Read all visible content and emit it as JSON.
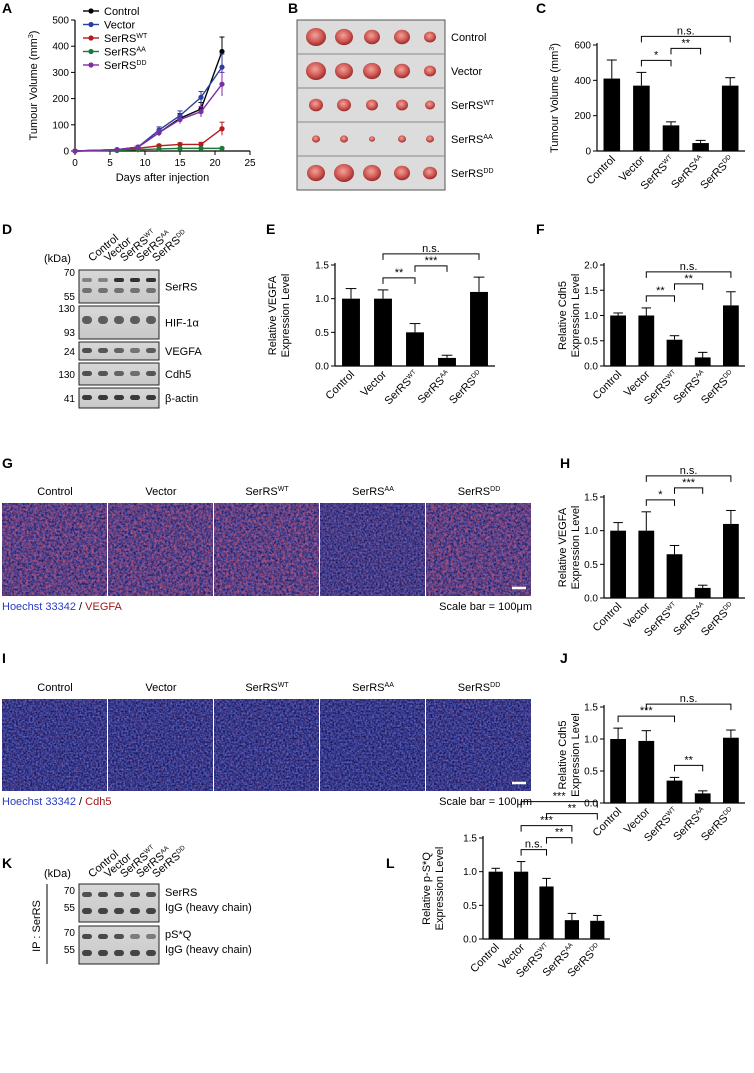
{
  "groups": [
    "Control",
    "Vector",
    "SerRS",
    "SerRS",
    "SerRS"
  ],
  "group_sups": [
    "",
    "",
    "WT",
    "AA",
    "DD"
  ],
  "colors": {
    "control": "#000000",
    "vector": "#2b3f9e",
    "wt": "#b71c1c",
    "aa": "#1b7a36",
    "dd": "#7b2fa6",
    "bar": "#000000",
    "hoechst": "#2a3bbf",
    "vegfa_stain": "#a01818",
    "cdh5_stain": "#a01818"
  },
  "panels": {
    "A": {
      "letter": "A"
    },
    "B": {
      "letter": "B"
    },
    "C": {
      "letter": "C"
    },
    "D": {
      "letter": "D"
    },
    "E": {
      "letter": "E"
    },
    "F": {
      "letter": "F"
    },
    "G": {
      "letter": "G"
    },
    "H": {
      "letter": "H"
    },
    "I": {
      "letter": "I"
    },
    "J": {
      "letter": "J"
    },
    "K": {
      "letter": "K"
    },
    "L": {
      "letter": "L"
    }
  },
  "blotD": {
    "kda": "(kDa)",
    "rows": [
      {
        "marker": "70",
        "marker2": "55",
        "label": "SerRS"
      },
      {
        "marker": "130",
        "marker2": "93",
        "label": "HIF-1α"
      },
      {
        "marker": "24",
        "marker2": "",
        "label": "VEGFA"
      },
      {
        "marker": "130",
        "marker2": "",
        "label": "Cdh5"
      },
      {
        "marker": "41",
        "marker2": "",
        "label": "β-actin"
      }
    ]
  },
  "blotK": {
    "kda": "(kDa)",
    "ip": "IP : SerRS",
    "rows": [
      {
        "m1": "70",
        "m2": "55",
        "l1": "SerRS",
        "l2": "IgG (heavy chain)"
      },
      {
        "m1": "70",
        "m2": "55",
        "l1": "pS*Q",
        "l2": "IgG (heavy chain)"
      }
    ]
  },
  "stainG": {
    "left": "Hoechst 33342",
    "sep": " / ",
    "right": "VEGFA",
    "scale": "Scale bar = 100μm"
  },
  "stainI": {
    "left": "Hoechst 33342",
    "sep": " / ",
    "right": "Cdh5",
    "scale": "Scale bar = 100μm"
  },
  "chart_data": [
    {
      "id": "A",
      "type": "line",
      "xlabel": "Days after injection",
      "ylabel": "Tumour Volume (mm",
      "ylabel_sup": "3",
      "ylabel_end": ")",
      "xlim": [
        0,
        25
      ],
      "ylim": [
        0,
        500
      ],
      "xticks": [
        0,
        5,
        10,
        15,
        20,
        25
      ],
      "yticks": [
        0,
        100,
        200,
        300,
        400,
        500
      ],
      "x": [
        0,
        6,
        9,
        12,
        15,
        18,
        21
      ],
      "series": [
        {
          "name": "Control",
          "sup": "",
          "color_key": "control",
          "values": [
            0,
            5,
            15,
            70,
            125,
            160,
            380
          ],
          "err": [
            0,
            3,
            5,
            12,
            18,
            25,
            55
          ]
        },
        {
          "name": "Vector",
          "sup": "",
          "color_key": "vector",
          "values": [
            0,
            5,
            15,
            80,
            135,
            205,
            320
          ],
          "err": [
            0,
            3,
            5,
            12,
            18,
            22,
            50
          ]
        },
        {
          "name": "SerRS",
          "sup": "WT",
          "color_key": "wt",
          "values": [
            0,
            3,
            10,
            20,
            25,
            25,
            85
          ],
          "err": [
            0,
            2,
            3,
            5,
            6,
            8,
            25
          ]
        },
        {
          "name": "SerRS",
          "sup": "AA",
          "color_key": "aa",
          "values": [
            0,
            2,
            5,
            8,
            10,
            10,
            10
          ],
          "err": [
            0,
            1,
            2,
            2,
            3,
            3,
            3
          ]
        },
        {
          "name": "SerRS",
          "sup": "DD",
          "color_key": "dd",
          "values": [
            0,
            5,
            15,
            70,
            120,
            150,
            255
          ],
          "err": [
            0,
            3,
            5,
            12,
            15,
            20,
            45
          ]
        }
      ]
    },
    {
      "id": "C",
      "type": "bar",
      "ylabel": "Tumour Volume (mm",
      "ylabel_sup": "3",
      "ylabel_end": ")",
      "ylim": [
        0,
        600
      ],
      "yticks": [
        0,
        200,
        400,
        600
      ],
      "values": [
        410,
        370,
        145,
        45,
        370
      ],
      "err": [
        105,
        75,
        20,
        15,
        45
      ],
      "sig": [
        {
          "from": 1,
          "to": 2,
          "label": "*"
        },
        {
          "from": 2,
          "to": 3,
          "label": "**"
        },
        {
          "from": 1,
          "to": 4,
          "label": "n.s."
        }
      ]
    },
    {
      "id": "E",
      "type": "bar",
      "ylabel": "Relative VEGFA",
      "ylabel2": "Expression Level",
      "ylim": [
        0,
        1.5
      ],
      "yticks": [
        0.0,
        0.5,
        1.0,
        1.5
      ],
      "values": [
        1.0,
        1.0,
        0.5,
        0.12,
        1.1
      ],
      "err": [
        0.15,
        0.13,
        0.13,
        0.04,
        0.22
      ],
      "sig": [
        {
          "from": 1,
          "to": 2,
          "label": "**"
        },
        {
          "from": 2,
          "to": 3,
          "label": "***"
        },
        {
          "from": 1,
          "to": 4,
          "label": "n.s."
        }
      ]
    },
    {
      "id": "F",
      "type": "bar",
      "ylabel": "Relative Cdh5",
      "ylabel2": "Expression Level",
      "ylim": [
        0,
        2.0
      ],
      "yticks": [
        0.0,
        0.5,
        1.0,
        1.5,
        2.0
      ],
      "values": [
        1.0,
        1.0,
        0.52,
        0.17,
        1.2
      ],
      "err": [
        0.05,
        0.15,
        0.08,
        0.1,
        0.27
      ],
      "sig": [
        {
          "from": 1,
          "to": 2,
          "label": "**"
        },
        {
          "from": 2,
          "to": 3,
          "label": "**"
        },
        {
          "from": 1,
          "to": 4,
          "label": "n.s."
        }
      ]
    },
    {
      "id": "H",
      "type": "bar",
      "ylabel": "Relative VEGFA",
      "ylabel2": "Expression Level",
      "ylim": [
        0,
        1.5
      ],
      "yticks": [
        0.0,
        0.5,
        1.0,
        1.5
      ],
      "values": [
        1.0,
        1.0,
        0.65,
        0.15,
        1.1
      ],
      "err": [
        0.12,
        0.28,
        0.13,
        0.04,
        0.2
      ],
      "sig": [
        {
          "from": 1,
          "to": 2,
          "label": "*"
        },
        {
          "from": 2,
          "to": 3,
          "label": "***"
        },
        {
          "from": 1,
          "to": 4,
          "label": "n.s."
        }
      ]
    },
    {
      "id": "J",
      "type": "bar",
      "ylabel": "Relative Cdh5",
      "ylabel2": "Expression Level",
      "ylim": [
        0,
        1.5
      ],
      "yticks": [
        0.0,
        0.5,
        1.0,
        1.5
      ],
      "values": [
        1.0,
        0.97,
        0.35,
        0.15,
        1.02
      ],
      "err": [
        0.17,
        0.16,
        0.05,
        0.04,
        0.12
      ],
      "sig": [
        {
          "from": 0,
          "to": 2,
          "label": "***"
        },
        {
          "from": 2,
          "to": 3,
          "label": "**"
        },
        {
          "from": 1,
          "to": 4,
          "label": "n.s."
        }
      ]
    },
    {
      "id": "L",
      "type": "bar",
      "ylabel": "Relative p-S*Q",
      "ylabel2": "Expression Level",
      "ylim": [
        0,
        1.5
      ],
      "yticks": [
        0.0,
        0.5,
        1.0,
        1.5
      ],
      "values": [
        1.0,
        1.0,
        0.78,
        0.28,
        0.27
      ],
      "err": [
        0.05,
        0.15,
        0.12,
        0.1,
        0.08
      ],
      "sig": [
        {
          "from": 1,
          "to": 2,
          "label": "n.s."
        },
        {
          "from": 1,
          "to": 3,
          "label": "***"
        },
        {
          "from": 1,
          "to": 4,
          "label": "***"
        },
        {
          "from": 2,
          "to": 3,
          "label": "**"
        },
        {
          "from": 2,
          "to": 4,
          "label": "**"
        }
      ]
    }
  ]
}
